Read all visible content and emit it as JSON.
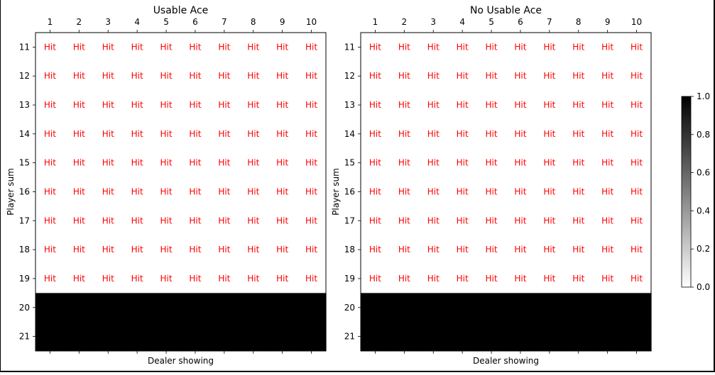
{
  "chart_data": [
    {
      "type": "heatmap",
      "title": "Usable Ace",
      "xlabel": "Dealer showing",
      "ylabel": "Player sum",
      "x_ticks": [
        "1",
        "2",
        "3",
        "4",
        "5",
        "6",
        "7",
        "8",
        "9",
        "10"
      ],
      "y_ticks": [
        "11",
        "12",
        "13",
        "14",
        "15",
        "16",
        "17",
        "18",
        "19",
        "20",
        "21"
      ],
      "x_axis_position": "top",
      "colormap": "gray_r",
      "value_range": [
        0,
        1
      ],
      "values": [
        [
          0,
          0,
          0,
          0,
          0,
          0,
          0,
          0,
          0,
          0
        ],
        [
          0,
          0,
          0,
          0,
          0,
          0,
          0,
          0,
          0,
          0
        ],
        [
          0,
          0,
          0,
          0,
          0,
          0,
          0,
          0,
          0,
          0
        ],
        [
          0,
          0,
          0,
          0,
          0,
          0,
          0,
          0,
          0,
          0
        ],
        [
          0,
          0,
          0,
          0,
          0,
          0,
          0,
          0,
          0,
          0
        ],
        [
          0,
          0,
          0,
          0,
          0,
          0,
          0,
          0,
          0,
          0
        ],
        [
          0,
          0,
          0,
          0,
          0,
          0,
          0,
          0,
          0,
          0
        ],
        [
          0,
          0,
          0,
          0,
          0,
          0,
          0,
          0,
          0,
          0
        ],
        [
          0,
          0,
          0,
          0,
          0,
          0,
          0,
          0,
          0,
          0
        ],
        [
          1,
          1,
          1,
          1,
          1,
          1,
          1,
          1,
          1,
          1
        ],
        [
          1,
          1,
          1,
          1,
          1,
          1,
          1,
          1,
          1,
          1
        ]
      ],
      "cell_text": "Hit",
      "cell_text_rule": "shown where value is 0",
      "cell_text_color": "#ff0000"
    },
    {
      "type": "heatmap",
      "title": "No Usable Ace",
      "xlabel": "Dealer showing",
      "ylabel": "Player sum",
      "x_ticks": [
        "1",
        "2",
        "3",
        "4",
        "5",
        "6",
        "7",
        "8",
        "9",
        "10"
      ],
      "y_ticks": [
        "11",
        "12",
        "13",
        "14",
        "15",
        "16",
        "17",
        "18",
        "19",
        "20",
        "21"
      ],
      "x_axis_position": "top",
      "colormap": "gray_r",
      "value_range": [
        0,
        1
      ],
      "values": [
        [
          0,
          0,
          0,
          0,
          0,
          0,
          0,
          0,
          0,
          0
        ],
        [
          0,
          0,
          0,
          0,
          0,
          0,
          0,
          0,
          0,
          0
        ],
        [
          0,
          0,
          0,
          0,
          0,
          0,
          0,
          0,
          0,
          0
        ],
        [
          0,
          0,
          0,
          0,
          0,
          0,
          0,
          0,
          0,
          0
        ],
        [
          0,
          0,
          0,
          0,
          0,
          0,
          0,
          0,
          0,
          0
        ],
        [
          0,
          0,
          0,
          0,
          0,
          0,
          0,
          0,
          0,
          0
        ],
        [
          0,
          0,
          0,
          0,
          0,
          0,
          0,
          0,
          0,
          0
        ],
        [
          0,
          0,
          0,
          0,
          0,
          0,
          0,
          0,
          0,
          0
        ],
        [
          0,
          0,
          0,
          0,
          0,
          0,
          0,
          0,
          0,
          0
        ],
        [
          1,
          1,
          1,
          1,
          1,
          1,
          1,
          1,
          1,
          1
        ],
        [
          1,
          1,
          1,
          1,
          1,
          1,
          1,
          1,
          1,
          1
        ]
      ],
      "cell_text": "Hit",
      "cell_text_rule": "shown where value is 0",
      "cell_text_color": "#ff0000"
    }
  ],
  "colorbar": {
    "ticks": [
      "0.0",
      "0.2",
      "0.4",
      "0.6",
      "0.8",
      "1.0"
    ],
    "tick_values": [
      0,
      0.2,
      0.4,
      0.6,
      0.8,
      1.0
    ],
    "range": [
      0,
      1
    ],
    "colormap": "gray_r"
  }
}
